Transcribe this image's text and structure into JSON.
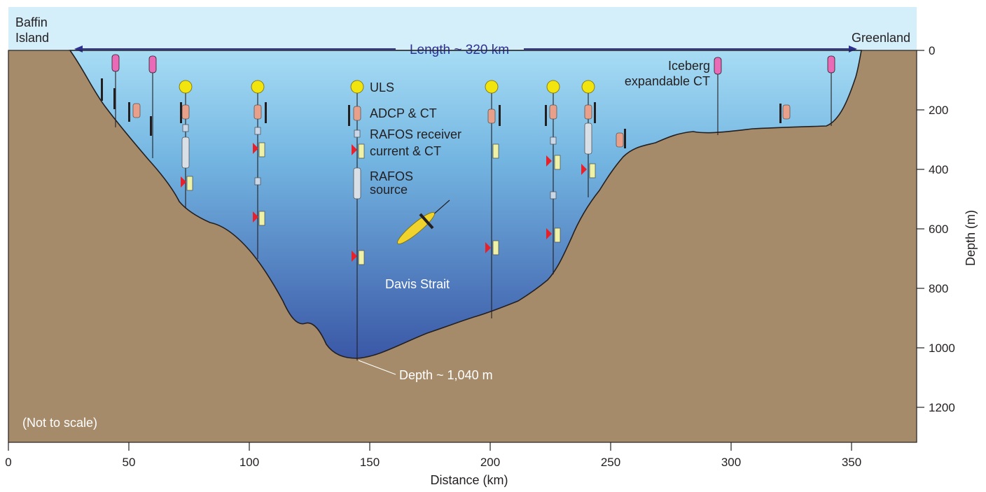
{
  "figure": {
    "labels": {
      "left_shore_line1": "Baffin",
      "left_shore_line2": "Island",
      "right_shore": "Greenland",
      "length": "Length ~ 320 km",
      "strait": "Davis Strait",
      "max_depth": "Depth ~ 1,040 m",
      "not_to_scale": "(Not to scale)",
      "iceberg_line1": "Iceberg",
      "iceberg_line2": "expandable CT"
    },
    "legend": {
      "uls": "ULS",
      "adcp": "ADCP & CT",
      "rafos_receiver": "RAFOS receiver",
      "current_ct": "current & CT",
      "rafos_source_line1": "RAFOS",
      "rafos_source_line2": "source"
    },
    "x_axis": {
      "title": "Distance (km)",
      "ticks": [
        "0",
        "50",
        "100",
        "150",
        "200",
        "250",
        "300",
        "350"
      ]
    },
    "y_axis": {
      "title": "Depth (m)",
      "ticks": [
        "0",
        "200",
        "400",
        "600",
        "800",
        "1000",
        "1200"
      ]
    },
    "colors": {
      "sky": "#d4eefa",
      "water_top": "#9fd6f2",
      "water_bottom": "#3a5aa8",
      "land": "#a68b6b",
      "uls_float": "#f2e40f",
      "current_meter_flag": "#e8202a",
      "iceberg_ct": "#e96ab7",
      "glider": "#f0d32c"
    }
  }
}
